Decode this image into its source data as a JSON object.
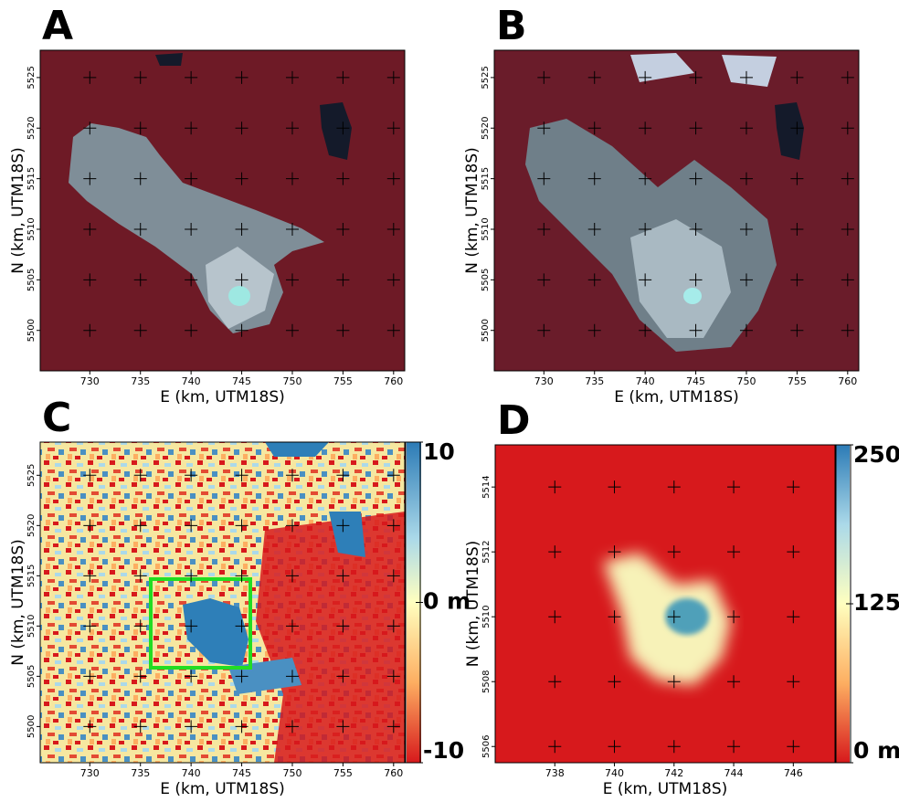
{
  "panels": [
    {
      "label": "A",
      "x_label": "E (km, UTM18S)",
      "y_label": "N (km, UTM18S)",
      "xlim": [
        725.1,
        761.1
      ],
      "ylim": [
        5496.0,
        5527.7
      ],
      "xticks": [
        730,
        735,
        740,
        745,
        750,
        755,
        760
      ],
      "yticks": [
        5500,
        5505,
        5510,
        5515,
        5520,
        5525
      ]
    },
    {
      "label": "B",
      "x_label": "E (km, UTM18S)",
      "y_label": "N (km, UTM18S)",
      "xlim": [
        725.1,
        761.1
      ],
      "ylim": [
        5496.0,
        5527.7
      ],
      "xticks": [
        730,
        735,
        740,
        745,
        750,
        755,
        760
      ],
      "yticks": [
        5500,
        5505,
        5510,
        5515,
        5520,
        5525
      ]
    },
    {
      "label": "C",
      "x_label": "E (km, UTM18S)",
      "y_label": "N (km, UTM18S)",
      "xlim": [
        725.1,
        761.1
      ],
      "ylim": [
        5496.4,
        5528.3
      ],
      "xticks": [
        730,
        735,
        740,
        745,
        750,
        755,
        760
      ],
      "yticks": [
        5500,
        5505,
        5510,
        5515,
        5520,
        5525
      ],
      "colorbar": {
        "lim": [
          -10,
          10
        ],
        "ticks": [
          10,
          {
            "value": 0,
            "label": "0 m"
          },
          -10
        ]
      }
    },
    {
      "label": "D",
      "x_label": "E (km, UTM18S)",
      "y_label": "N (km, UTM18S)",
      "xlim": [
        736.0,
        747.4
      ],
      "ylim": [
        5505.5,
        5515.3
      ],
      "xticks": [
        738,
        740,
        742,
        744,
        746
      ],
      "yticks": [
        5506,
        5508,
        5510,
        5512,
        5514
      ],
      "colorbar": {
        "lim": [
          0,
          250
        ],
        "ticks": [
          250,
          125,
          {
            "value": 0,
            "label": "0 m"
          }
        ]
      }
    }
  ]
}
